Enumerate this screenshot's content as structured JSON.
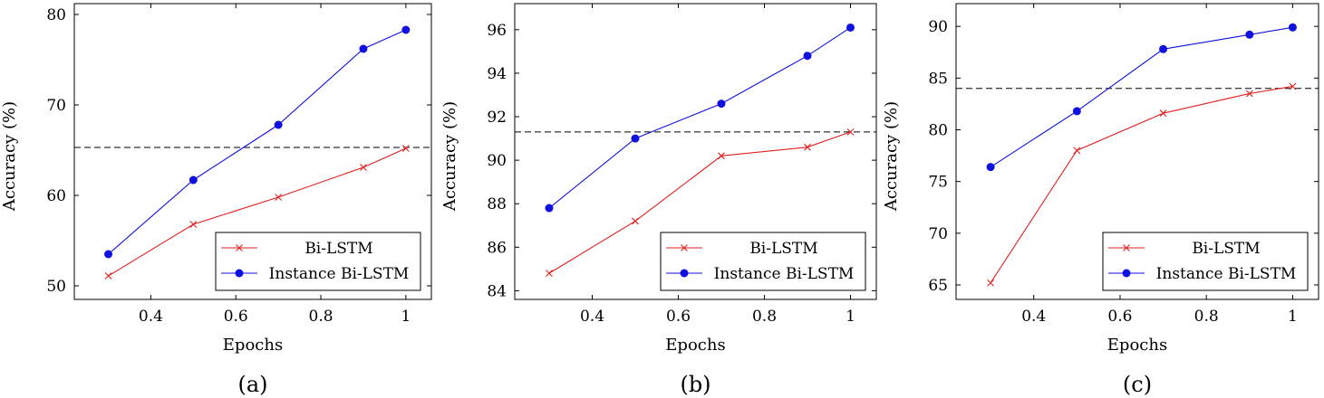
{
  "colors": {
    "bilstm": "#e02020",
    "instance": "#1010e0",
    "baseline": "#000000"
  },
  "chart_data": [
    {
      "type": "line",
      "panel_label": "(a)",
      "title": "",
      "xlabel": "Epochs",
      "ylabel": "Accuracy (%)",
      "xlim": [
        0.22,
        1.06
      ],
      "ylim": [
        48.5,
        81.2
      ],
      "xticks": [
        0.4,
        0.6,
        0.8,
        1.0
      ],
      "xtick_labels": [
        "0.4",
        "0.6",
        "0.8",
        "1"
      ],
      "yticks": [
        50,
        60,
        70,
        80
      ],
      "ytick_labels": [
        "50",
        "60",
        "70",
        "80"
      ],
      "x": [
        0.3,
        0.5,
        0.7,
        0.9,
        1.0
      ],
      "series": [
        {
          "name": "Bi-LSTM",
          "marker": "x",
          "values": [
            51.1,
            56.8,
            59.8,
            63.1,
            65.2
          ]
        },
        {
          "name": "Instance Bi-LSTM",
          "marker": "circle",
          "values": [
            53.5,
            61.7,
            67.8,
            76.2,
            78.3
          ]
        }
      ],
      "baseline": 65.3,
      "legend_position": "bottom-right"
    },
    {
      "type": "line",
      "panel_label": "(b)",
      "title": "",
      "xlabel": "Epochs",
      "ylabel": "Accuracy (%)",
      "xlim": [
        0.22,
        1.06
      ],
      "ylim": [
        83.6,
        97.2
      ],
      "xticks": [
        0.4,
        0.6,
        0.8,
        1.0
      ],
      "xtick_labels": [
        "0.4",
        "0.6",
        "0.8",
        "1"
      ],
      "yticks": [
        84,
        86,
        88,
        90,
        92,
        94,
        96
      ],
      "ytick_labels": [
        "84",
        "86",
        "88",
        "90",
        "92",
        "94",
        "96"
      ],
      "x": [
        0.3,
        0.5,
        0.7,
        0.9,
        1.0
      ],
      "series": [
        {
          "name": "Bi-LSTM",
          "marker": "x",
          "values": [
            84.8,
            87.2,
            90.2,
            90.6,
            91.3
          ]
        },
        {
          "name": "Instance Bi-LSTM",
          "marker": "circle",
          "values": [
            87.8,
            91.0,
            92.6,
            94.8,
            96.1
          ]
        }
      ],
      "baseline": 91.3,
      "legend_position": "bottom-right"
    },
    {
      "type": "line",
      "panel_label": "(c)",
      "title": "",
      "xlabel": "Epochs",
      "ylabel": "Accuracy (%)",
      "xlim": [
        0.22,
        1.06
      ],
      "ylim": [
        63.6,
        92.2
      ],
      "xticks": [
        0.4,
        0.6,
        0.8,
        1.0
      ],
      "xtick_labels": [
        "0.4",
        "0.6",
        "0.8",
        "1"
      ],
      "yticks": [
        65,
        70,
        75,
        80,
        85,
        90
      ],
      "ytick_labels": [
        "65",
        "70",
        "75",
        "80",
        "85",
        "90"
      ],
      "x": [
        0.3,
        0.5,
        0.7,
        0.9,
        1.0
      ],
      "series": [
        {
          "name": "Bi-LSTM",
          "marker": "x",
          "values": [
            65.2,
            78.0,
            81.6,
            83.5,
            84.2
          ]
        },
        {
          "name": "Instance Bi-LSTM",
          "marker": "circle",
          "values": [
            76.4,
            81.8,
            87.8,
            89.2,
            89.9
          ]
        }
      ],
      "baseline": 84.0,
      "legend_position": "bottom-right"
    }
  ]
}
